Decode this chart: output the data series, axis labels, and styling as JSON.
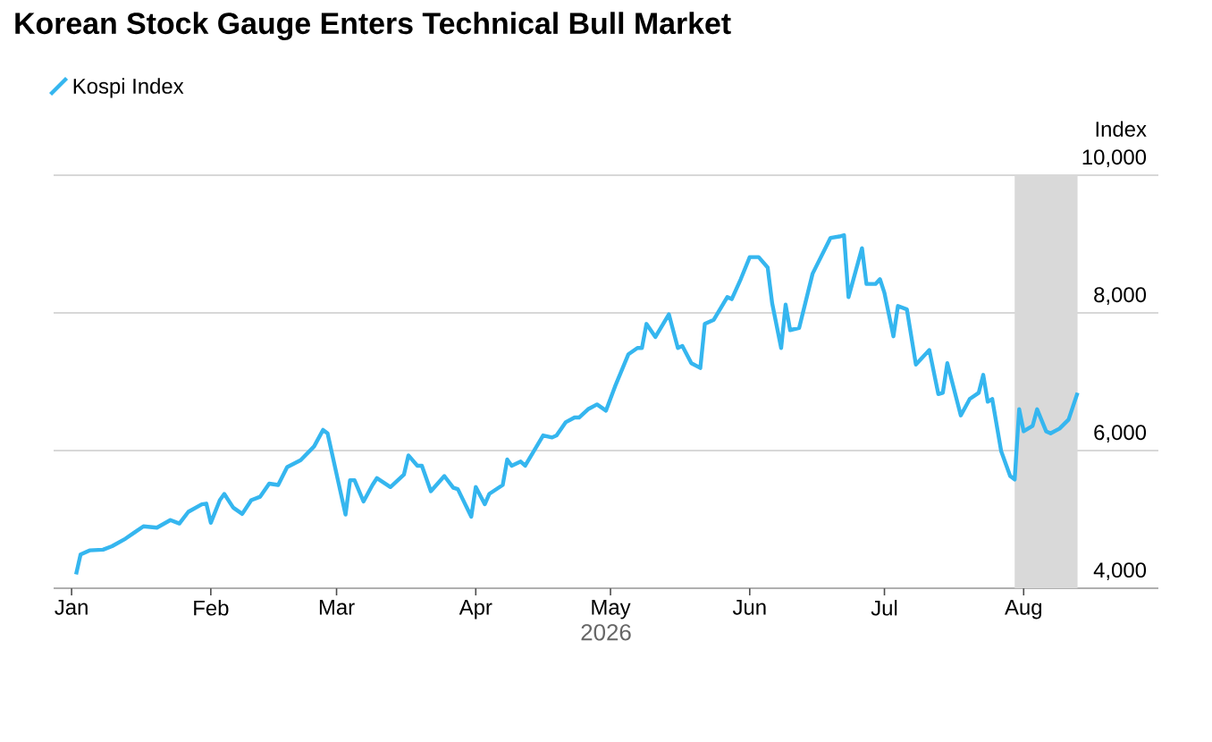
{
  "chart_data": {
    "type": "line",
    "title": "Korean Stock Gauge Enters Technical Bull Market",
    "xlabel": "2026",
    "ylabel": "Index",
    "xlim": [
      "2025-12-28",
      "2026-08-31"
    ],
    "xticks": [
      {
        "value": "2026-01-01",
        "label": "Jan"
      },
      {
        "value": "2026-02-01",
        "label": "Feb"
      },
      {
        "value": "2026-03-01",
        "label": "Mar"
      },
      {
        "value": "2026-04-01",
        "label": "Apr"
      },
      {
        "value": "2026-05-01",
        "label": "May"
      },
      {
        "value": "2026-06-01",
        "label": "Jun"
      },
      {
        "value": "2026-07-01",
        "label": "Jul"
      },
      {
        "value": "2026-08-01",
        "label": "Aug"
      }
    ],
    "ylim": [
      4000,
      10000
    ],
    "yticks": [
      {
        "value": 4000,
        "label": "4,000"
      },
      {
        "value": 6000,
        "label": "6,000"
      },
      {
        "value": 8000,
        "label": "8,000"
      },
      {
        "value": 10000,
        "label": "10,000"
      }
    ],
    "grid": "y",
    "legend": "top left",
    "bands": [
      {
        "axis": "x",
        "from": "2026-07-30",
        "to": "2026-08-13",
        "color": "#d9d9d9"
      }
    ],
    "series": [
      {
        "name": "Kospi Index",
        "color": "#35b6ef",
        "x": [
          "2026-01-02",
          "2026-01-03",
          "2026-01-05",
          "2026-01-08",
          "2026-01-10",
          "2026-01-13",
          "2026-01-15",
          "2026-01-17",
          "2026-01-20",
          "2026-01-23",
          "2026-01-25",
          "2026-01-27",
          "2026-01-30",
          "2026-01-31",
          "2026-02-01",
          "2026-02-03",
          "2026-02-04",
          "2026-02-06",
          "2026-02-08",
          "2026-02-10",
          "2026-02-12",
          "2026-02-14",
          "2026-02-16",
          "2026-02-18",
          "2026-02-21",
          "2026-02-24",
          "2026-02-26",
          "2026-02-27",
          "2026-03-03",
          "2026-03-04",
          "2026-03-05",
          "2026-03-07",
          "2026-03-09",
          "2026-03-10",
          "2026-03-13",
          "2026-03-16",
          "2026-03-17",
          "2026-03-19",
          "2026-03-20",
          "2026-03-22",
          "2026-03-25",
          "2026-03-27",
          "2026-03-28",
          "2026-03-31",
          "2026-04-01",
          "2026-04-03",
          "2026-04-04",
          "2026-04-07",
          "2026-04-08",
          "2026-04-09",
          "2026-04-11",
          "2026-04-12",
          "2026-04-16",
          "2026-04-18",
          "2026-04-19",
          "2026-04-21",
          "2026-04-23",
          "2026-04-24",
          "2026-04-26",
          "2026-04-28",
          "2026-04-30",
          "2026-05-02",
          "2026-05-05",
          "2026-05-07",
          "2026-05-08",
          "2026-05-09",
          "2026-05-11",
          "2026-05-14",
          "2026-05-16",
          "2026-05-17",
          "2026-05-19",
          "2026-05-21",
          "2026-05-22",
          "2026-05-24",
          "2026-05-27",
          "2026-05-28",
          "2026-05-30",
          "2026-06-01",
          "2026-06-03",
          "2026-06-05",
          "2026-06-06",
          "2026-06-08",
          "2026-06-09",
          "2026-06-10",
          "2026-06-12",
          "2026-06-15",
          "2026-06-17",
          "2026-06-19",
          "2026-06-21",
          "2026-06-22",
          "2026-06-23",
          "2026-06-26",
          "2026-06-27",
          "2026-06-29",
          "2026-06-30",
          "2026-07-01",
          "2026-07-03",
          "2026-07-04",
          "2026-07-06",
          "2026-07-08",
          "2026-07-11",
          "2026-07-13",
          "2026-07-14",
          "2026-07-15",
          "2026-07-18",
          "2026-07-20",
          "2026-07-22",
          "2026-07-23",
          "2026-07-24",
          "2026-07-25",
          "2026-07-27",
          "2026-07-29",
          "2026-07-30",
          "2026-07-31",
          "2026-08-01",
          "2026-08-03",
          "2026-08-04",
          "2026-08-06",
          "2026-08-07",
          "2026-08-09",
          "2026-08-11",
          "2026-08-13"
        ],
        "values": [
          4200,
          4490,
          4550,
          4560,
          4610,
          4720,
          4810,
          4900,
          4880,
          4990,
          4940,
          5110,
          5220,
          5230,
          4950,
          5280,
          5370,
          5170,
          5080,
          5280,
          5330,
          5520,
          5500,
          5760,
          5860,
          6060,
          6300,
          6250,
          5070,
          5570,
          5570,
          5260,
          5500,
          5600,
          5470,
          5650,
          5930,
          5780,
          5780,
          5410,
          5630,
          5460,
          5440,
          5040,
          5470,
          5220,
          5370,
          5500,
          5870,
          5780,
          5840,
          5780,
          6220,
          6190,
          6220,
          6410,
          6480,
          6480,
          6600,
          6670,
          6580,
          6930,
          7400,
          7490,
          7490,
          7840,
          7650,
          7980,
          7490,
          7520,
          7270,
          7200,
          7840,
          7900,
          8230,
          8200,
          8490,
          8810,
          8810,
          8660,
          8140,
          7490,
          8120,
          7750,
          7780,
          8570,
          8830,
          9090,
          9110,
          9130,
          8230,
          8940,
          8420,
          8420,
          8490,
          8290,
          7660,
          8100,
          8050,
          7250,
          7460,
          6820,
          6840,
          7270,
          6510,
          6750,
          6840,
          7100,
          6710,
          6750,
          5990,
          5630,
          5580,
          6600,
          6280,
          6360,
          6600,
          6280,
          6250,
          6320,
          6450,
          6840
        ]
      }
    ]
  }
}
